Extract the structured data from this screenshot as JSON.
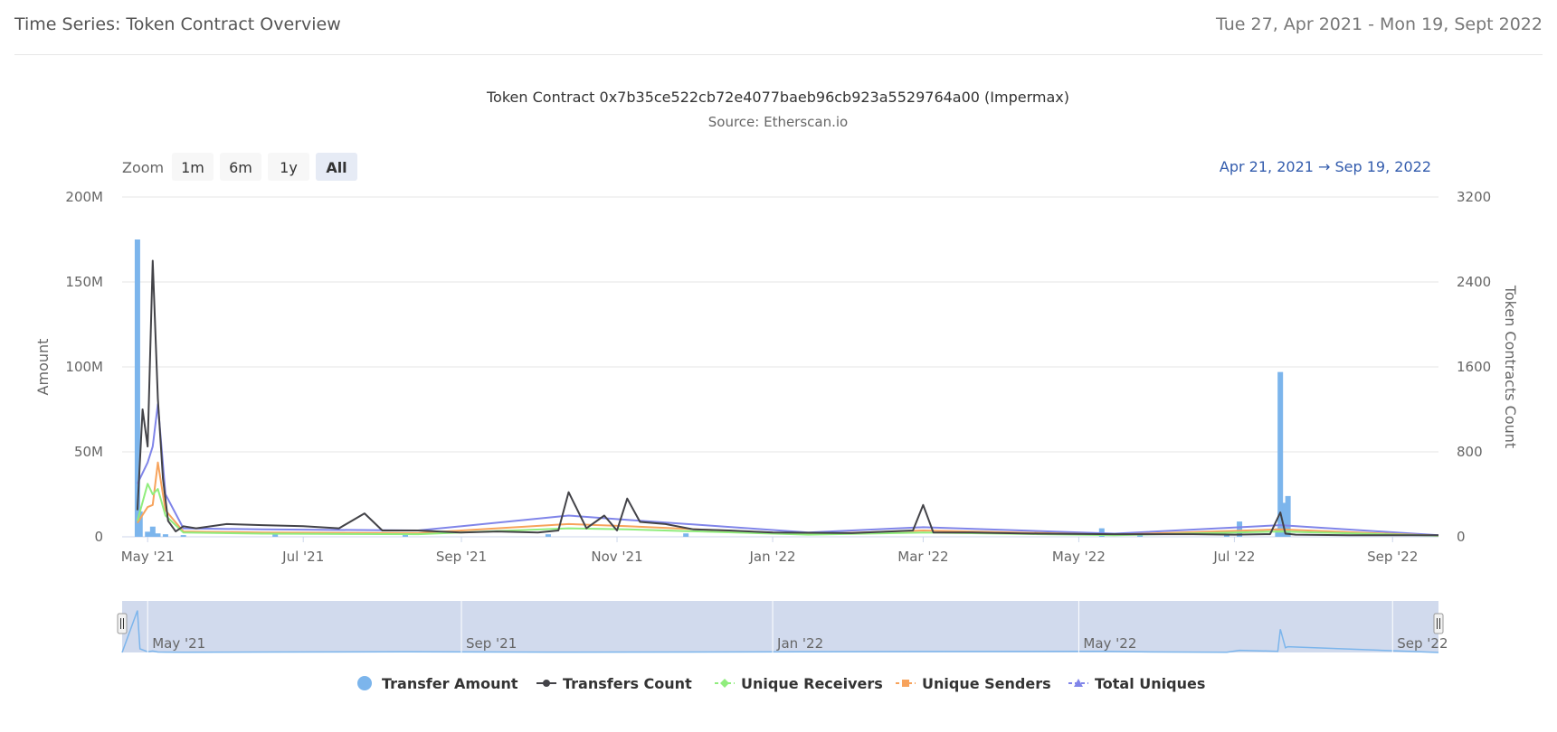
{
  "header": {
    "title": "Time Series: Token Contract Overview",
    "date_range": "Tue 27, Apr 2021 - Mon 19, Sept 2022"
  },
  "range_selector": {
    "zoom_label": "Zoom",
    "buttons": [
      "1m",
      "6m",
      "1y",
      "All"
    ],
    "active": "All",
    "from": "Apr 21, 2021",
    "arrow": "→",
    "to": "Sep 19, 2022"
  },
  "navigator": {
    "labels": [
      "May '21",
      "Sep '21",
      "Jan '22",
      "May '22",
      "Sep '22"
    ]
  },
  "colors": {
    "transfer_amount": "#7cb5ec",
    "transfers_count": "#434348",
    "unique_receivers": "#90ed7d",
    "unique_senders": "#f7a35c",
    "total_uniques": "#8085e9",
    "axis_text": "#666666",
    "grid": "#e6e6e6",
    "navigator_fill": "#ccd6eb",
    "range_date": "#335cad"
  },
  "chart_data": {
    "type": "bar",
    "title": "Token Contract 0x7b35ce522cb72e4077baeb96cb923a5529764a00 (Impermax)",
    "subtitle": "Source: Etherscan.io",
    "x_range": [
      "2021-04-21",
      "2022-09-19"
    ],
    "x_ticks": [
      "May '21",
      "Jul '21",
      "Sep '21",
      "Nov '21",
      "Jan '22",
      "Mar '22",
      "May '22",
      "Jul '22",
      "Sep '22"
    ],
    "y_left": {
      "label": "Amount",
      "ticks": [
        "0",
        "50M",
        "100M",
        "150M",
        "200M"
      ],
      "ylim": [
        0,
        200000000
      ]
    },
    "y_right": {
      "label": "Token Contracts Count",
      "ticks": [
        "0",
        "800",
        "1600",
        "2400",
        "3200"
      ],
      "ylim": [
        0,
        3200
      ]
    },
    "legend": [
      "Transfer Amount",
      "Transfers Count",
      "Unique Receivers",
      "Unique Senders",
      "Total Uniques"
    ],
    "legend_position": "bottom",
    "grid": true,
    "series": [
      {
        "name": "Transfer Amount",
        "type": "column",
        "axis": "left",
        "x": [
          "2021-04-27",
          "2021-04-28",
          "2021-05-01",
          "2021-05-03",
          "2021-05-05",
          "2021-05-08",
          "2021-05-15",
          "2021-06-20",
          "2021-08-10",
          "2021-10-05",
          "2021-11-28",
          "2022-05-10",
          "2022-05-25",
          "2022-06-28",
          "2022-07-03",
          "2022-07-18",
          "2022-07-19",
          "2022-07-21",
          "2022-07-22"
        ],
        "values": [
          175000000,
          15000000,
          3000000,
          6000000,
          2000000,
          1500000,
          1000000,
          2000000,
          2500000,
          1500000,
          2000000,
          5000000,
          2500000,
          1000000,
          9000000,
          5000000,
          97000000,
          20000000,
          24000000
        ]
      },
      {
        "name": "Transfers Count",
        "type": "line",
        "axis": "right",
        "x": [
          "2021-04-27",
          "2021-04-29",
          "2021-05-01",
          "2021-05-03",
          "2021-05-05",
          "2021-05-07",
          "2021-05-09",
          "2021-05-12",
          "2021-05-15",
          "2021-05-20",
          "2021-06-01",
          "2021-06-15",
          "2021-07-01",
          "2021-07-15",
          "2021-07-25",
          "2021-08-01",
          "2021-08-15",
          "2021-09-01",
          "2021-09-15",
          "2021-10-01",
          "2021-10-09",
          "2021-10-13",
          "2021-10-20",
          "2021-10-27",
          "2021-11-01",
          "2021-11-05",
          "2021-11-10",
          "2021-11-20",
          "2021-12-01",
          "2021-12-15",
          "2022-01-01",
          "2022-02-01",
          "2022-02-25",
          "2022-03-01",
          "2022-03-05",
          "2022-03-20",
          "2022-04-15",
          "2022-05-15",
          "2022-06-15",
          "2022-07-01",
          "2022-07-15",
          "2022-07-19",
          "2022-07-21",
          "2022-07-25",
          "2022-08-15",
          "2022-09-19"
        ],
        "values": [
          250,
          1200,
          850,
          2600,
          1300,
          550,
          150,
          50,
          100,
          80,
          120,
          110,
          100,
          80,
          220,
          60,
          60,
          40,
          50,
          40,
          60,
          420,
          80,
          200,
          60,
          360,
          140,
          120,
          70,
          60,
          40,
          35,
          60,
          300,
          40,
          40,
          30,
          25,
          25,
          20,
          25,
          230,
          30,
          20,
          15,
          15
        ]
      },
      {
        "name": "Unique Receivers",
        "type": "line",
        "axis": "right",
        "x": [
          "2021-04-27",
          "2021-05-01",
          "2021-05-03",
          "2021-05-05",
          "2021-05-08",
          "2021-05-15",
          "2021-06-15",
          "2021-08-15",
          "2021-10-13",
          "2021-11-05",
          "2022-01-15",
          "2022-03-01",
          "2022-05-15",
          "2022-07-19",
          "2022-09-19"
        ],
        "values": [
          150,
          500,
          400,
          450,
          200,
          40,
          30,
          25,
          80,
          70,
          20,
          40,
          15,
          50,
          10
        ]
      },
      {
        "name": "Unique Senders",
        "type": "line",
        "axis": "right",
        "x": [
          "2021-04-27",
          "2021-05-01",
          "2021-05-03",
          "2021-05-05",
          "2021-05-08",
          "2021-05-15",
          "2021-06-15",
          "2021-08-15",
          "2021-10-13",
          "2021-11-05",
          "2022-01-15",
          "2022-03-01",
          "2022-05-15",
          "2022-07-19",
          "2022-09-19"
        ],
        "values": [
          130,
          280,
          300,
          700,
          250,
          50,
          40,
          35,
          120,
          100,
          25,
          60,
          20,
          70,
          10
        ]
      },
      {
        "name": "Total Uniques",
        "type": "line",
        "axis": "right",
        "x": [
          "2021-04-27",
          "2021-05-01",
          "2021-05-03",
          "2021-05-05",
          "2021-05-08",
          "2021-05-15",
          "2021-06-15",
          "2021-08-15",
          "2021-10-13",
          "2021-11-05",
          "2022-01-15",
          "2022-03-01",
          "2022-05-15",
          "2022-07-19",
          "2022-09-19"
        ],
        "values": [
          500,
          700,
          850,
          1250,
          400,
          80,
          70,
          60,
          200,
          160,
          40,
          90,
          30,
          110,
          15
        ]
      }
    ]
  }
}
